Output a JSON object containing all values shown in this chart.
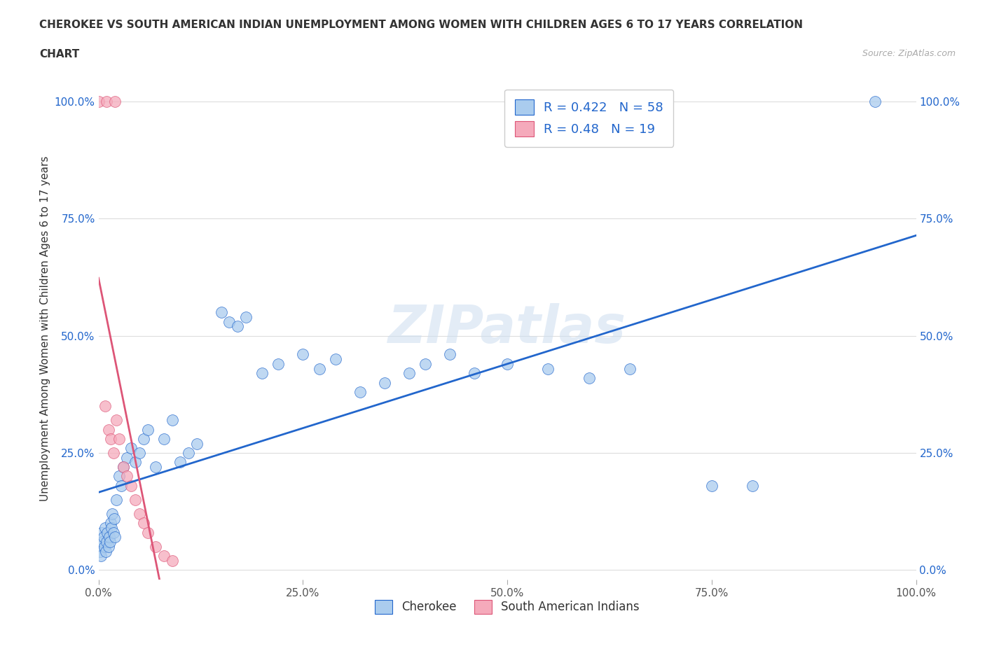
{
  "title_line1": "CHEROKEE VS SOUTH AMERICAN INDIAN UNEMPLOYMENT AMONG WOMEN WITH CHILDREN AGES 6 TO 17 YEARS CORRELATION",
  "title_line2": "CHART",
  "source_text": "Source: ZipAtlas.com",
  "watermark": "ZIPatlas",
  "ylabel": "Unemployment Among Women with Children Ages 6 to 17 years",
  "xlim": [
    0,
    1.0
  ],
  "ylim": [
    -0.02,
    1.05
  ],
  "xticks": [
    0.0,
    0.25,
    0.5,
    0.75,
    1.0
  ],
  "yticks": [
    0.0,
    0.25,
    0.5,
    0.75,
    1.0
  ],
  "xtick_labels": [
    "0.0%",
    "25.0%",
    "50.0%",
    "75.0%",
    "100.0%"
  ],
  "ytick_labels": [
    "0.0%",
    "25.0%",
    "50.0%",
    "75.0%",
    "100.0%"
  ],
  "cherokee_color": "#aaccee",
  "sam_indian_color": "#f5aabb",
  "blue_line_color": "#2266cc",
  "pink_line_color": "#dd5577",
  "grid_color": "#dddddd",
  "background_color": "#ffffff",
  "R_cherokee": 0.422,
  "N_cherokee": 58,
  "R_sam": 0.48,
  "N_sam": 19,
  "cherokee_x": [
    0.001,
    0.002,
    0.003,
    0.004,
    0.005,
    0.006,
    0.007,
    0.008,
    0.009,
    0.01,
    0.011,
    0.012,
    0.013,
    0.014,
    0.015,
    0.016,
    0.017,
    0.018,
    0.019,
    0.02,
    0.022,
    0.025,
    0.028,
    0.03,
    0.035,
    0.04,
    0.045,
    0.05,
    0.055,
    0.06,
    0.07,
    0.08,
    0.09,
    0.1,
    0.11,
    0.12,
    0.15,
    0.16,
    0.17,
    0.18,
    0.2,
    0.22,
    0.25,
    0.27,
    0.29,
    0.32,
    0.35,
    0.38,
    0.4,
    0.43,
    0.46,
    0.5,
    0.55,
    0.6,
    0.65,
    0.75,
    0.8,
    0.95
  ],
  "cherokee_y": [
    0.05,
    0.04,
    0.03,
    0.08,
    0.06,
    0.07,
    0.05,
    0.09,
    0.04,
    0.06,
    0.08,
    0.05,
    0.07,
    0.06,
    0.1,
    0.09,
    0.12,
    0.08,
    0.11,
    0.07,
    0.15,
    0.2,
    0.18,
    0.22,
    0.24,
    0.26,
    0.23,
    0.25,
    0.28,
    0.3,
    0.22,
    0.28,
    0.32,
    0.23,
    0.25,
    0.27,
    0.55,
    0.53,
    0.52,
    0.54,
    0.42,
    0.44,
    0.46,
    0.43,
    0.45,
    0.38,
    0.4,
    0.42,
    0.44,
    0.46,
    0.42,
    0.44,
    0.43,
    0.41,
    0.43,
    0.18,
    0.18,
    1.0
  ],
  "sam_x": [
    0.0,
    0.01,
    0.02,
    0.008,
    0.012,
    0.015,
    0.018,
    0.022,
    0.025,
    0.03,
    0.035,
    0.04,
    0.045,
    0.05,
    0.055,
    0.06,
    0.07,
    0.08,
    0.09
  ],
  "sam_y": [
    1.0,
    1.0,
    1.0,
    0.35,
    0.3,
    0.28,
    0.25,
    0.32,
    0.28,
    0.22,
    0.2,
    0.18,
    0.15,
    0.12,
    0.1,
    0.08,
    0.05,
    0.03,
    0.02
  ]
}
